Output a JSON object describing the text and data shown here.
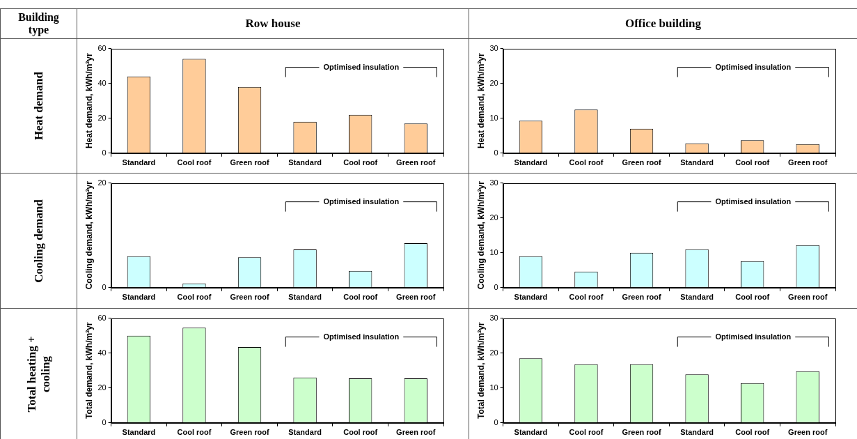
{
  "chart_data": [
    {
      "type": "bar",
      "categories": [
        "Standard",
        "Cool roof",
        "Green roof",
        "Standard",
        "Cool roof",
        "Green roof"
      ],
      "values": [
        44,
        54,
        38,
        18,
        22,
        17
      ],
      "color": "#ffcc99",
      "ylabel": "Heat demand, kWh/m²yr",
      "ylim": [
        0,
        60
      ],
      "yticks": [
        0,
        20,
        40,
        60
      ],
      "annotations": [
        "Optimised insulation"
      ]
    },
    {
      "type": "bar",
      "categories": [
        "Standard",
        "Cool roof",
        "Green roof",
        "Standard",
        "Cool roof",
        "Green roof"
      ],
      "values": [
        9.3,
        12.5,
        7,
        2.8,
        3.7,
        2.6
      ],
      "color": "#ffcc99",
      "ylabel": "Heat demand, kWh/m²yr",
      "ylim": [
        0,
        30
      ],
      "yticks": [
        0,
        10,
        20,
        30
      ],
      "annotations": [
        "Optimised insulation"
      ]
    },
    {
      "type": "bar",
      "categories": [
        "Standard",
        "Cool roof",
        "Green roof",
        "Standard",
        "Cool roof",
        "Green roof"
      ],
      "values": [
        6,
        0.8,
        5.8,
        7.3,
        3.2,
        8.5
      ],
      "color": "#ccffff",
      "ylabel": "Cooling demand, kWh/m²yr",
      "ylim": [
        0,
        20
      ],
      "yticks": [
        0,
        20
      ],
      "annotations": [
        "Optimised insulation"
      ]
    },
    {
      "type": "bar",
      "categories": [
        "Standard",
        "Cool roof",
        "Green roof",
        "Standard",
        "Cool roof",
        "Green roof"
      ],
      "values": [
        9,
        4.6,
        10,
        11,
        7.6,
        12.2
      ],
      "color": "#ccffff",
      "ylabel": "Cooling demand, kWh/m²yr",
      "ylim": [
        0,
        30
      ],
      "yticks": [
        0,
        10,
        20,
        30
      ],
      "annotations": [
        "Optimised insulation"
      ]
    },
    {
      "type": "bar",
      "categories": [
        "Standard",
        "Cool roof",
        "Green roof",
        "Standard",
        "Cool roof",
        "Green roof"
      ],
      "values": [
        50,
        54.5,
        43.5,
        26,
        25.5,
        25.5
      ],
      "color": "#ccffcc",
      "ylabel": "Total demand, kWh/m²yr",
      "ylim": [
        0,
        60
      ],
      "yticks": [
        0,
        20,
        40,
        60
      ],
      "annotations": [
        "Optimised insulation"
      ]
    },
    {
      "type": "bar",
      "categories": [
        "Standard",
        "Cool roof",
        "Green roof",
        "Standard",
        "Cool roof",
        "Green roof"
      ],
      "values": [
        18.5,
        16.8,
        16.8,
        13.9,
        11.4,
        14.8
      ],
      "color": "#ccffcc",
      "ylabel": "Total demand, kWh/m²yr",
      "ylim": [
        0,
        30
      ],
      "yticks": [
        0,
        10,
        20,
        30
      ],
      "annotations": [
        "Optimised insulation"
      ]
    },
    {
      "type": "other",
      "annotations": [
        "Building type",
        "Row house",
        "Office building",
        "Heat demand",
        "Cooling demand",
        "Total heating + cooling"
      ]
    }
  ]
}
